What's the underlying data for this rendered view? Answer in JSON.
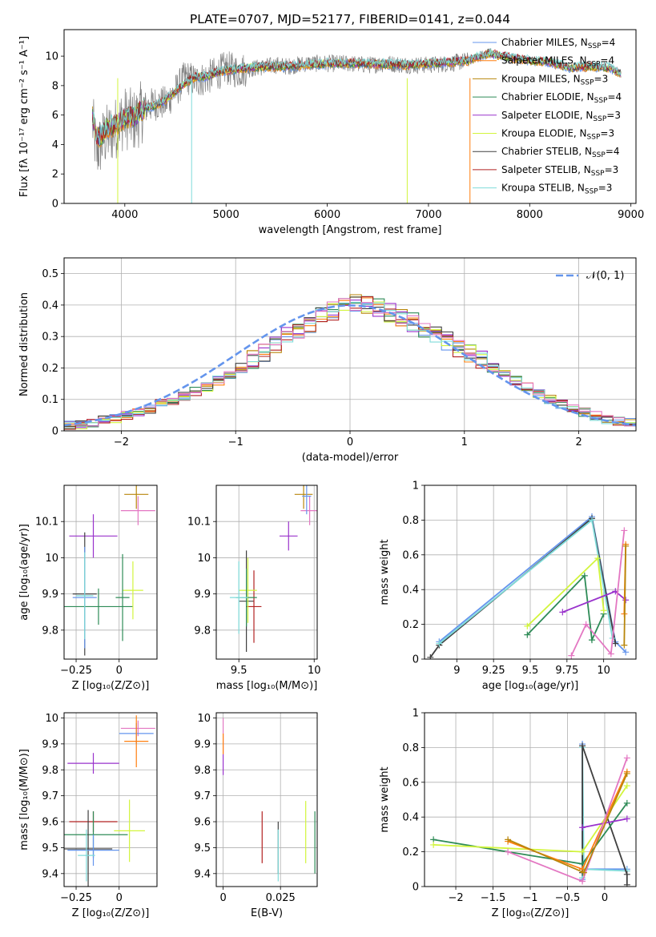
{
  "page": {
    "title": "PLATE=0707, MJD=52177, FIBERID=0141, z=0.044"
  },
  "colors": {
    "cMILES": "#6495ed",
    "sMILES": "#ff7f0e",
    "kMILES": "#b8860b",
    "cELODIE": "#2e8b57",
    "sELODIE": "#9932cc",
    "kELODIE": "#d2f53c",
    "cSTELIB": "#404040",
    "sSTELIB": "#b22222",
    "kSTELIB": "#7fdbda",
    "pink": "#e377c2",
    "norm": "#6495ed"
  },
  "chart_data": [
    {
      "id": "spectrum",
      "type": "line",
      "title": "PLATE=0707, MJD=52177, FIBERID=0141, z=0.044",
      "xlabel": "wavelength [Angstrom, rest frame]",
      "ylabel": "Flux [fλ 10⁻¹⁷ erg cm⁻² s⁻¹ A⁻¹]",
      "xlim": [
        3400,
        9050
      ],
      "ylim": [
        0,
        11.8
      ],
      "xticks": [
        4000,
        5000,
        6000,
        7000,
        8000,
        9000
      ],
      "yticks": [
        0,
        2,
        4,
        6,
        8,
        10
      ],
      "grid": false,
      "legend_position": "top-right",
      "legend": [
        {
          "label": "Chabrier MILES, N_SSP=4",
          "color": "cMILES"
        },
        {
          "label": "Salpeter MILES, N_SSP=4",
          "color": "sMILES"
        },
        {
          "label": "Kroupa MILES, N_SSP=3",
          "color": "kMILES"
        },
        {
          "label": "Chabrier ELODIE, N_SSP=4",
          "color": "cELODIE"
        },
        {
          "label": "Salpeter ELODIE, N_SSP=3",
          "color": "sELODIE"
        },
        {
          "label": "Kroupa ELODIE, N_SSP=3",
          "color": "kELODIE"
        },
        {
          "label": "Chabrier STELIB, N_SSP=4",
          "color": "cSTELIB"
        },
        {
          "label": "Salpeter STELIB, N_SSP=3",
          "color": "sSTELIB"
        },
        {
          "label": "Kroupa STELIB, N_SSP=3",
          "color": "kSTELIB"
        }
      ],
      "data_series": {
        "name": "data",
        "color": "#808080",
        "x": [
          3680,
          3720,
          3800,
          3900,
          3950,
          4000,
          4100,
          4200,
          4300,
          4400,
          4500,
          4600,
          4700,
          4800,
          4900,
          5000,
          5100,
          5200,
          5300,
          5400,
          5500,
          5600,
          5700,
          5800,
          5900,
          6000,
          6200,
          6400,
          6600,
          6800,
          7000,
          7200,
          7400
        ],
        "y": [
          5.5,
          3.5,
          4.5,
          5.0,
          5.5,
          5.8,
          5.6,
          6.5,
          6.8,
          6.8,
          7.6,
          8.6,
          8.3,
          8.5,
          8.8,
          9.2,
          9.0,
          9.1,
          9.2,
          9.3,
          9.4,
          9.3,
          9.4,
          9.5,
          9.5,
          9.5,
          9.5,
          9.4,
          9.5,
          9.4,
          9.4,
          9.5,
          9.7
        ]
      },
      "model_series": {
        "name": "model",
        "x": [
          3680,
          3720,
          3760,
          3800,
          3850,
          3900,
          3950,
          4000,
          4100,
          4200,
          4300,
          4400,
          4500,
          4600,
          4700,
          4800,
          4900,
          5000,
          5200,
          5400,
          5600,
          5800,
          6000,
          6400,
          6800,
          7200,
          7400,
          7600,
          7800,
          8000,
          8200,
          8400,
          8600,
          8800,
          8900
        ],
        "y": [
          6.0,
          4.5,
          4.5,
          5.0,
          5.2,
          5.3,
          5.5,
          5.8,
          5.9,
          6.5,
          6.6,
          7.0,
          7.6,
          8.2,
          8.6,
          8.6,
          8.9,
          9.0,
          9.2,
          9.3,
          9.3,
          9.4,
          9.5,
          9.5,
          9.4,
          9.6,
          9.7,
          10.2,
          9.9,
          9.7,
          9.6,
          9.2,
          9.3,
          9.2,
          8.8
        ]
      }
    },
    {
      "id": "residuals",
      "type": "line",
      "xlabel": "(data-model)/error",
      "ylabel": "Normed distribution",
      "xlim": [
        -2.5,
        2.5
      ],
      "ylim": [
        0,
        0.55
      ],
      "xticks": [
        -2,
        -1,
        0,
        1,
        2
      ],
      "yticks": [
        0.0,
        0.1,
        0.2,
        0.3,
        0.4,
        0.5
      ],
      "grid": true,
      "legend_position": "top-right",
      "legend": [
        {
          "label": "𝒩(0, 1)",
          "color": "norm"
        }
      ],
      "bin_edges": [
        -2.5,
        -2.4,
        -2.3,
        -2.2,
        -2.1,
        -2.0,
        -1.9,
        -1.8,
        -1.7,
        -1.6,
        -1.5,
        -1.4,
        -1.3,
        -1.2,
        -1.1,
        -1.0,
        -0.9,
        -0.8,
        -0.7,
        -0.6,
        -0.5,
        -0.4,
        -0.3,
        -0.2,
        -0.1,
        0.0,
        0.1,
        0.2,
        0.3,
        0.4,
        0.5,
        0.6,
        0.7,
        0.8,
        0.9,
        1.0,
        1.1,
        1.2,
        1.3,
        1.4,
        1.5,
        1.6,
        1.7,
        1.8,
        1.9,
        2.0,
        2.1,
        2.2,
        2.3,
        2.4,
        2.5
      ],
      "hist_counts": [
        0.018,
        0.02,
        0.026,
        0.033,
        0.04,
        0.05,
        0.06,
        0.07,
        0.085,
        0.095,
        0.11,
        0.125,
        0.14,
        0.16,
        0.18,
        0.2,
        0.225,
        0.25,
        0.275,
        0.3,
        0.32,
        0.34,
        0.365,
        0.38,
        0.4,
        0.41,
        0.4,
        0.39,
        0.375,
        0.36,
        0.345,
        0.325,
        0.305,
        0.285,
        0.265,
        0.245,
        0.225,
        0.2,
        0.18,
        0.16,
        0.14,
        0.12,
        0.1,
        0.085,
        0.072,
        0.06,
        0.048,
        0.038,
        0.03,
        0.025
      ],
      "histograms": [
        "cMILES",
        "sMILES",
        "kMILES",
        "cELODIE",
        "sELODIE",
        "kELODIE",
        "cSTELIB",
        "sSTELIB",
        "kSTELIB",
        "pink"
      ]
    },
    {
      "id": "age_vs_Z",
      "type": "scatter",
      "xlabel": "Z [log₁₀(Z/Z⊙)]",
      "ylabel": "age  [log₁₀(age/yr)]",
      "xlim": [
        -0.32,
        0.22
      ],
      "ylim": [
        9.72,
        10.2
      ],
      "xticks": [
        -0.25,
        0.0
      ],
      "yticks": [
        9.8,
        9.9,
        10.0,
        10.1
      ],
      "grid": true,
      "points": [
        {
          "color": "sELODIE",
          "x": -0.15,
          "y": 10.06,
          "xerr": 0.14,
          "yerr": 0.06
        },
        {
          "color": "kMILES",
          "x": 0.1,
          "y": 10.175,
          "xerr": 0.07,
          "yerr": 0.04
        },
        {
          "color": "pink",
          "x": 0.11,
          "y": 10.13,
          "xerr": 0.1,
          "yerr": 0.04
        },
        {
          "color": "cSTELIB",
          "x": -0.2,
          "y": 9.9,
          "xerr": 0.07,
          "yerr": 0.17
        },
        {
          "color": "cMILES",
          "x": -0.2,
          "y": 9.89,
          "xerr": 0.07,
          "yerr": 0.14
        },
        {
          "color": "cELODIE",
          "x": -0.12,
          "y": 9.865,
          "xerr": 0.2,
          "yerr": 0.05
        },
        {
          "color": "kELODIE",
          "x": 0.08,
          "y": 9.91,
          "xerr": 0.06,
          "yerr": 0.08
        },
        {
          "color": "cELODIE",
          "x": 0.02,
          "y": 9.89,
          "xerr": 0.04,
          "yerr": 0.12
        },
        {
          "color": "kSTELIB",
          "x": -0.2,
          "y": 9.895,
          "xerr": 0.05,
          "yerr": 0.12
        }
      ]
    },
    {
      "id": "age_vs_mass",
      "type": "scatter",
      "xlabel": "mass [log₁₀(M/M⊙)]",
      "xlim": [
        9.35,
        10.02
      ],
      "ylim": [
        9.72,
        10.2
      ],
      "xticks": [
        9.5,
        10.0
      ],
      "yticks": [
        9.8,
        9.9,
        10.0,
        10.1
      ],
      "grid": true,
      "points": [
        {
          "color": "sELODIE",
          "x": 9.83,
          "y": 10.06,
          "xerr": 0.06,
          "yerr": 0.04
        },
        {
          "color": "kMILES",
          "x": 9.93,
          "y": 10.175,
          "xerr": 0.06,
          "yerr": 0.04
        },
        {
          "color": "pink",
          "x": 9.97,
          "y": 10.13,
          "xerr": 0.06,
          "yerr": 0.04
        },
        {
          "color": "cMILES",
          "x": 9.95,
          "y": 10.17,
          "xerr": 0.03,
          "yerr": 0.05
        },
        {
          "color": "cSTELIB",
          "x": 9.55,
          "y": 9.88,
          "xerr": 0.05,
          "yerr": 0.14
        },
        {
          "color": "sSTELIB",
          "x": 9.6,
          "y": 9.865,
          "xerr": 0.05,
          "yerr": 0.1
        },
        {
          "color": "kELODIE",
          "x": 9.56,
          "y": 9.91,
          "xerr": 0.06,
          "yerr": 0.09
        },
        {
          "color": "cELODIE",
          "x": 9.55,
          "y": 9.89,
          "xerr": 0.07,
          "yerr": 0.08
        },
        {
          "color": "kSTELIB",
          "x": 9.5,
          "y": 9.89,
          "xerr": 0.06,
          "yerr": 0.1
        }
      ]
    },
    {
      "id": "mass_weight_vs_age",
      "type": "line",
      "xlabel": "age  [log₁₀(age/yr)]",
      "ylabel": "mass weight",
      "xlim": [
        8.78,
        10.22
      ],
      "ylim": [
        0,
        1.0
      ],
      "xticks": [
        9.0,
        9.25,
        9.5,
        9.75,
        10.0
      ],
      "yticks": [
        0.0,
        0.2,
        0.4,
        0.6,
        0.8,
        1.0
      ],
      "grid": true,
      "series": [
        {
          "color": "cMILES",
          "x": [
            8.88,
            9.92,
            10.08,
            10.15
          ],
          "y": [
            0.1,
            0.82,
            0.1,
            0.04
          ]
        },
        {
          "color": "cSTELIB",
          "x": [
            8.82,
            8.88,
            9.92,
            10.08
          ],
          "y": [
            0.01,
            0.08,
            0.81,
            0.09
          ]
        },
        {
          "color": "kSTELIB",
          "x": [
            8.88,
            9.92,
            10.06
          ],
          "y": [
            0.09,
            0.8,
            0.12
          ]
        },
        {
          "color": "cELODIE",
          "x": [
            9.48,
            9.87,
            9.92,
            10.0
          ],
          "y": [
            0.14,
            0.48,
            0.11,
            0.26
          ]
        },
        {
          "color": "kELODIE",
          "x": [
            9.48,
            9.96,
            10.0
          ],
          "y": [
            0.19,
            0.58,
            0.28
          ]
        },
        {
          "color": "sELODIE",
          "x": [
            9.72,
            10.08,
            10.15
          ],
          "y": [
            0.27,
            0.39,
            0.34
          ]
        },
        {
          "color": "pink",
          "x": [
            9.78,
            9.88,
            10.05,
            10.14
          ],
          "y": [
            0.02,
            0.2,
            0.03,
            0.74
          ]
        },
        {
          "color": "sMILES",
          "x": [
            10.14,
            10.15
          ],
          "y": [
            0.26,
            0.66
          ]
        },
        {
          "color": "kMILES",
          "x": [
            10.14,
            10.15
          ],
          "y": [
            0.08,
            0.65
          ]
        }
      ]
    },
    {
      "id": "mass_vs_Z",
      "type": "scatter",
      "xlabel": "Z [log₁₀(Z/Z⊙)]",
      "ylabel": "mass [log₁₀(M/M⊙)]",
      "xlim": [
        -0.32,
        0.22
      ],
      "ylim": [
        9.35,
        10.02
      ],
      "xticks": [
        -0.25,
        0.0
      ],
      "yticks": [
        9.4,
        9.5,
        9.6,
        9.7,
        9.8,
        9.9,
        10.0
      ],
      "grid": true,
      "points": [
        {
          "color": "pink",
          "x": 0.11,
          "y": 9.96,
          "xerr": 0.1,
          "yerr": 0.03
        },
        {
          "color": "cMILES",
          "x": 0.1,
          "y": 9.94,
          "xerr": 0.1,
          "yerr": 0.04
        },
        {
          "color": "sMILES",
          "x": 0.1,
          "y": 9.91,
          "xerr": 0.07,
          "yerr": 0.1
        },
        {
          "color": "sELODIE",
          "x": -0.15,
          "y": 9.825,
          "xerr": 0.15,
          "yerr": 0.04
        },
        {
          "color": "sSTELIB",
          "x": -0.15,
          "y": 9.6,
          "xerr": 0.14,
          "yerr": 0.04
        },
        {
          "color": "kELODIE",
          "x": 0.06,
          "y": 9.565,
          "xerr": 0.09,
          "yerr": 0.12
        },
        {
          "color": "cELODIE",
          "x": -0.15,
          "y": 9.55,
          "xerr": 0.2,
          "yerr": 0.09
        },
        {
          "color": "cSTELIB",
          "x": -0.18,
          "y": 9.495,
          "xerr": 0.14,
          "yerr": 0.15
        },
        {
          "color": "cMILES",
          "x": -0.15,
          "y": 9.49,
          "xerr": 0.15,
          "yerr": 0.06
        },
        {
          "color": "kSTELIB",
          "x": -0.19,
          "y": 9.47,
          "xerr": 0.05,
          "yerr": 0.1
        }
      ]
    },
    {
      "id": "mass_vs_EBV",
      "type": "scatter",
      "xlabel": "E(B-V)",
      "xlim": [
        -0.003,
        0.041
      ],
      "ylim": [
        9.35,
        10.02
      ],
      "xticks": [
        0.0,
        0.025
      ],
      "yticks": [
        9.4,
        9.5,
        9.6,
        9.7,
        9.8,
        9.9,
        10.0
      ],
      "grid": true,
      "points": [
        {
          "color": "pink",
          "x": 0.0,
          "y": 9.93,
          "yerr": 0.07
        },
        {
          "color": "sMILES",
          "x": 0.0,
          "y": 9.9,
          "yerr": 0.04
        },
        {
          "color": "sELODIE",
          "x": 0.0,
          "y": 9.82,
          "yerr": 0.04
        },
        {
          "color": "sSTELIB",
          "x": 0.017,
          "y": 9.54,
          "yerr": 0.1
        },
        {
          "color": "cSTELIB",
          "x": 0.024,
          "y": 9.5,
          "yerr": 0.1
        },
        {
          "color": "kSTELIB",
          "x": 0.024,
          "y": 9.47,
          "yerr": 0.1
        },
        {
          "color": "kELODIE",
          "x": 0.036,
          "y": 9.56,
          "yerr": 0.12
        },
        {
          "color": "cELODIE",
          "x": 0.04,
          "y": 9.52,
          "yerr": 0.12
        }
      ]
    },
    {
      "id": "mass_weight_vs_Z",
      "type": "line",
      "xlabel": "Z [log₁₀(Z/Z⊙)]",
      "ylabel": "mass weight",
      "xlim": [
        -2.42,
        0.42
      ],
      "ylim": [
        0,
        1.0
      ],
      "xticks": [
        -2.0,
        -1.5,
        -1.0,
        -0.5,
        0.0
      ],
      "yticks": [
        0.0,
        0.2,
        0.4,
        0.6,
        0.8,
        1.0
      ],
      "grid": true,
      "series": [
        {
          "color": "cMILES",
          "x": [
            -0.3,
            -0.3,
            -0.3,
            0.3
          ],
          "y": [
            0.04,
            0.82,
            0.1,
            0.1
          ]
        },
        {
          "color": "kSTELIB",
          "x": [
            -0.3,
            -0.3,
            -0.28,
            0.3
          ],
          "y": [
            0.05,
            0.8,
            0.1,
            0.09
          ]
        },
        {
          "color": "cSTELIB",
          "x": [
            -0.3,
            -0.3,
            0.3,
            0.3
          ],
          "y": [
            0.08,
            0.81,
            0.07,
            0.01
          ]
        },
        {
          "color": "cELODIE",
          "x": [
            -2.3,
            -0.3,
            0.3
          ],
          "y": [
            0.27,
            0.13,
            0.48
          ]
        },
        {
          "color": "kELODIE",
          "x": [
            -2.3,
            -0.3,
            0.3
          ],
          "y": [
            0.24,
            0.2,
            0.58
          ]
        },
        {
          "color": "sELODIE",
          "x": [
            -0.3,
            0.3
          ],
          "y": [
            0.34,
            0.39
          ]
        },
        {
          "color": "sMILES",
          "x": [
            -1.3,
            -0.3,
            0.3
          ],
          "y": [
            0.26,
            0.1,
            0.66
          ]
        },
        {
          "color": "pink",
          "x": [
            -1.3,
            -0.3,
            0.3
          ],
          "y": [
            0.2,
            0.03,
            0.74
          ]
        },
        {
          "color": "kMILES",
          "x": [
            -1.3,
            -0.28,
            0.3
          ],
          "y": [
            0.27,
            0.08,
            0.65
          ]
        }
      ]
    }
  ]
}
